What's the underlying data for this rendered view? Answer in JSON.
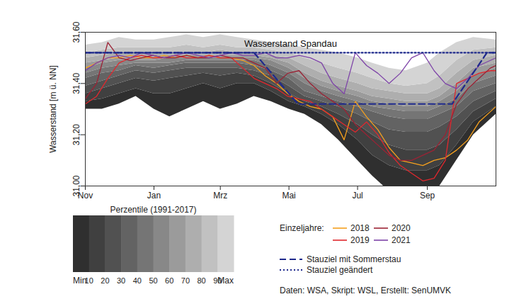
{
  "chart_data": {
    "type": "line",
    "title": "Wasserstand Spandau",
    "y_label": "Wasserstand [m ü. NN]",
    "xlim": [
      0,
      365
    ],
    "xticks": [
      {
        "value": 0,
        "label": "Nov"
      },
      {
        "value": 61,
        "label": "Jan"
      },
      {
        "value": 120,
        "label": "Mrz"
      },
      {
        "value": 181,
        "label": "Mai"
      },
      {
        "value": 242,
        "label": "Jul"
      },
      {
        "value": 304,
        "label": "Sep"
      }
    ],
    "ylim": [
      31,
      31.6
    ],
    "yticks": [
      {
        "value": 31,
        "label": "31,00"
      },
      {
        "value": 31.2,
        "label": "31,20"
      },
      {
        "value": 31.4,
        "label": "31,40"
      },
      {
        "value": 31.6,
        "label": "31,60"
      }
    ],
    "grid": false,
    "percentiles": {
      "title": "Perzentile (1991-2017)",
      "x": [
        0,
        15,
        30,
        45,
        61,
        75,
        90,
        105,
        120,
        135,
        150,
        165,
        181,
        195,
        210,
        225,
        242,
        255,
        270,
        285,
        304,
        315,
        330,
        345,
        365
      ],
      "colors": [
        "#2f2f2f",
        "#404040",
        "#515151",
        "#636363",
        "#757575",
        "#888888",
        "#9b9b9b",
        "#aeaeae",
        "#c1c1c1",
        "#d4d4d4"
      ],
      "levels": [
        {
          "name": "Min",
          "values": [
            31.3,
            31.3,
            31.32,
            31.35,
            31.3,
            31.27,
            31.3,
            31.33,
            31.3,
            31.32,
            31.35,
            31.33,
            31.3,
            31.28,
            31.24,
            31.18,
            31.1,
            31.04,
            30.98,
            30.97,
            30.98,
            31.0,
            31.1,
            31.2,
            31.28
          ]
        },
        {
          "name": "10",
          "values": [
            31.33,
            31.34,
            31.36,
            31.38,
            31.36,
            31.36,
            31.38,
            31.4,
            31.38,
            31.4,
            31.4,
            31.37,
            31.33,
            31.31,
            31.28,
            31.24,
            31.18,
            31.12,
            31.08,
            31.06,
            31.06,
            31.08,
            31.16,
            31.25,
            31.31
          ]
        },
        {
          "name": "20",
          "values": [
            31.36,
            31.38,
            31.4,
            31.42,
            31.41,
            31.42,
            31.43,
            31.44,
            31.43,
            31.44,
            31.43,
            31.4,
            31.36,
            31.33,
            31.31,
            31.28,
            31.24,
            31.2,
            31.16,
            31.14,
            31.14,
            31.16,
            31.22,
            31.29,
            31.34
          ]
        },
        {
          "name": "30",
          "values": [
            31.39,
            31.41,
            31.43,
            31.45,
            31.44,
            31.45,
            31.46,
            31.46,
            31.46,
            31.46,
            31.45,
            31.43,
            31.39,
            31.35,
            31.33,
            31.31,
            31.28,
            31.25,
            31.22,
            31.21,
            31.21,
            31.23,
            31.27,
            31.33,
            31.37
          ]
        },
        {
          "name": "40",
          "values": [
            31.42,
            31.44,
            31.45,
            31.47,
            31.46,
            31.47,
            31.48,
            31.48,
            31.48,
            31.48,
            31.47,
            31.45,
            31.42,
            31.37,
            31.35,
            31.33,
            31.31,
            31.29,
            31.27,
            31.26,
            31.26,
            31.28,
            31.31,
            31.37,
            31.4
          ]
        },
        {
          "name": "50",
          "values": [
            31.44,
            31.46,
            31.47,
            31.48,
            31.48,
            31.48,
            31.49,
            31.49,
            31.49,
            31.49,
            31.49,
            31.47,
            31.44,
            31.4,
            31.37,
            31.35,
            31.33,
            31.31,
            31.3,
            31.29,
            31.29,
            31.31,
            31.34,
            31.4,
            31.43
          ]
        },
        {
          "name": "60",
          "values": [
            31.46,
            31.48,
            31.49,
            31.49,
            31.49,
            31.5,
            31.5,
            31.5,
            31.5,
            31.5,
            31.5,
            31.49,
            31.46,
            31.42,
            31.39,
            31.37,
            31.35,
            31.33,
            31.32,
            31.31,
            31.31,
            31.33,
            31.37,
            31.43,
            31.46
          ]
        },
        {
          "name": "70",
          "values": [
            31.48,
            31.49,
            31.5,
            31.5,
            31.5,
            31.51,
            31.51,
            31.51,
            31.51,
            31.51,
            31.51,
            31.5,
            31.48,
            31.44,
            31.41,
            31.39,
            31.37,
            31.35,
            31.34,
            31.33,
            31.33,
            31.35,
            31.4,
            31.46,
            31.48
          ]
        },
        {
          "name": "80",
          "values": [
            31.5,
            31.51,
            31.52,
            31.52,
            31.52,
            31.52,
            31.52,
            31.52,
            31.53,
            31.52,
            31.52,
            31.51,
            31.5,
            31.47,
            31.44,
            31.42,
            31.4,
            31.38,
            31.37,
            31.36,
            31.36,
            31.38,
            31.44,
            31.49,
            31.51
          ]
        },
        {
          "name": "90",
          "values": [
            31.52,
            31.53,
            31.54,
            31.54,
            31.54,
            31.54,
            31.55,
            31.54,
            31.55,
            31.54,
            31.54,
            31.53,
            31.52,
            31.5,
            31.48,
            31.46,
            31.44,
            31.42,
            31.4,
            31.39,
            31.4,
            31.43,
            31.49,
            31.53,
            31.54
          ]
        },
        {
          "name": "Max",
          "values": [
            31.55,
            31.56,
            31.58,
            31.57,
            31.57,
            31.58,
            31.59,
            31.58,
            31.59,
            31.58,
            31.57,
            31.56,
            31.55,
            31.54,
            31.53,
            31.52,
            31.5,
            31.48,
            31.46,
            31.45,
            31.48,
            31.52,
            31.56,
            31.58,
            31.57
          ]
        }
      ]
    },
    "legend_title": "Einzeljahre:",
    "x": [
      0,
      10,
      20,
      30,
      40,
      50,
      60,
      70,
      80,
      90,
      100,
      110,
      120,
      130,
      140,
      150,
      160,
      170,
      180,
      190,
      200,
      210,
      220,
      230,
      240,
      250,
      260,
      270,
      280,
      290,
      300,
      310,
      320,
      330,
      340,
      350,
      360,
      365
    ],
    "series": [
      {
        "name": "2018",
        "color": "#f5a01e",
        "values": [
          31.46,
          31.48,
          31.5,
          31.5,
          31.51,
          31.5,
          31.5,
          31.51,
          31.5,
          31.51,
          31.5,
          31.51,
          31.5,
          31.5,
          31.49,
          31.47,
          31.43,
          31.4,
          31.36,
          31.33,
          31.31,
          31.3,
          31.27,
          31.18,
          31.33,
          31.27,
          31.22,
          31.15,
          31.1,
          31.09,
          31.08,
          31.1,
          31.11,
          31.14,
          31.18,
          31.25,
          31.29,
          31.31
        ]
      },
      {
        "name": "2019",
        "color": "#e0282e",
        "values": [
          31.32,
          31.35,
          31.42,
          31.48,
          31.5,
          31.51,
          31.5,
          31.5,
          31.51,
          31.5,
          31.5,
          31.51,
          31.5,
          31.5,
          31.46,
          31.42,
          31.4,
          31.38,
          31.35,
          31.34,
          31.33,
          31.3,
          31.27,
          31.24,
          31.21,
          31.25,
          31.2,
          31.13,
          31.08,
          31.05,
          31.02,
          31.03,
          31.1,
          31.4,
          31.42,
          31.44,
          31.45,
          31.45
        ]
      },
      {
        "name": "2020",
        "color": "#9b2335",
        "values": [
          31.34,
          31.4,
          31.56,
          31.5,
          31.49,
          31.5,
          31.51,
          31.5,
          31.5,
          31.51,
          31.5,
          31.5,
          31.51,
          31.5,
          31.5,
          31.48,
          31.46,
          31.4,
          31.44,
          31.45,
          31.4,
          31.36,
          31.33,
          31.3,
          31.24,
          31.2,
          31.16,
          31.12,
          31.1,
          31.1,
          31.12,
          31.14,
          31.2,
          31.32,
          31.38,
          31.42,
          31.46,
          31.47
        ]
      },
      {
        "name": "2021",
        "color": "#7e44a8",
        "values": [
          31.45,
          31.48,
          31.5,
          31.51,
          31.5,
          31.52,
          31.51,
          31.5,
          31.51,
          31.52,
          31.51,
          31.5,
          31.51,
          31.52,
          31.51,
          31.51,
          31.52,
          31.5,
          31.5,
          31.51,
          31.5,
          31.48,
          31.4,
          31.36,
          31.52,
          31.47,
          31.44,
          31.4,
          31.44,
          31.5,
          31.52,
          31.45,
          31.4,
          31.38,
          31.42,
          31.47,
          31.49,
          31.5
        ]
      }
    ],
    "reference_lines": [
      {
        "name": "Stauziel mit Sommerstau",
        "color": "#1f2a8c",
        "line_style": "dashed",
        "x": [
          0,
          150,
          189,
          326,
          357,
          365
        ],
        "values": [
          31.52,
          31.52,
          31.32,
          31.32,
          31.52,
          31.52
        ]
      },
      {
        "name": "Stauziel geändert",
        "color": "#1f2a8c",
        "line_style": "dotted",
        "x": [
          0,
          365
        ],
        "values": [
          31.52,
          31.52
        ]
      }
    ],
    "source": "Daten: WSA, Skript: WSL, Erstellt: SenUMVK"
  }
}
